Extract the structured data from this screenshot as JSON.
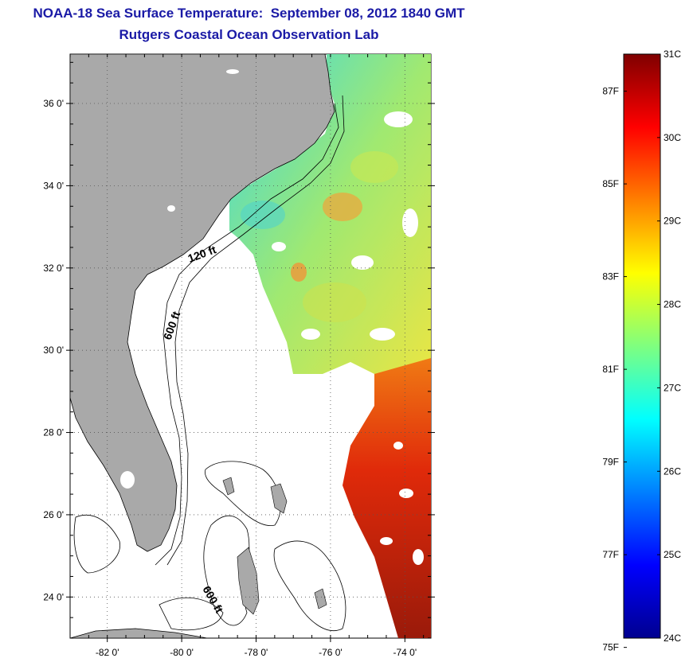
{
  "header": {
    "title": "NOAA-18 Sea Surface Temperature:  September 08, 2012 1840 GMT",
    "subtitle": "Rutgers Coastal Ocean Observation Lab"
  },
  "map": {
    "lat_ticks": [
      "24 0'",
      "26 0'",
      "28 0'",
      "30 0'",
      "32 0'",
      "34 0'",
      "36 0'"
    ],
    "lon_ticks": [
      "-82 0'",
      "-80 0'",
      "-78 0'",
      "-76 0'",
      "-74 0'"
    ],
    "lat_range": [
      23,
      37.2
    ],
    "lon_range": [
      -83,
      -73.3
    ],
    "contour_labels": {
      "c120": "120 ft",
      "c600a": "600 ft",
      "c600b": "600 ft"
    },
    "colors": {
      "land": "#a9a9a9",
      "ocean": "#ffffff",
      "grid": "#555555"
    }
  },
  "colorbar": {
    "celsius_labels": [
      "31C",
      "30C",
      "29C",
      "28C",
      "27C",
      "26C",
      "25C",
      "24C"
    ],
    "fahrenheit_labels": [
      "87F",
      "85F",
      "83F",
      "81F",
      "79F",
      "77F",
      "75F"
    ],
    "range_c": [
      24,
      31
    ],
    "colormap": "jet"
  }
}
